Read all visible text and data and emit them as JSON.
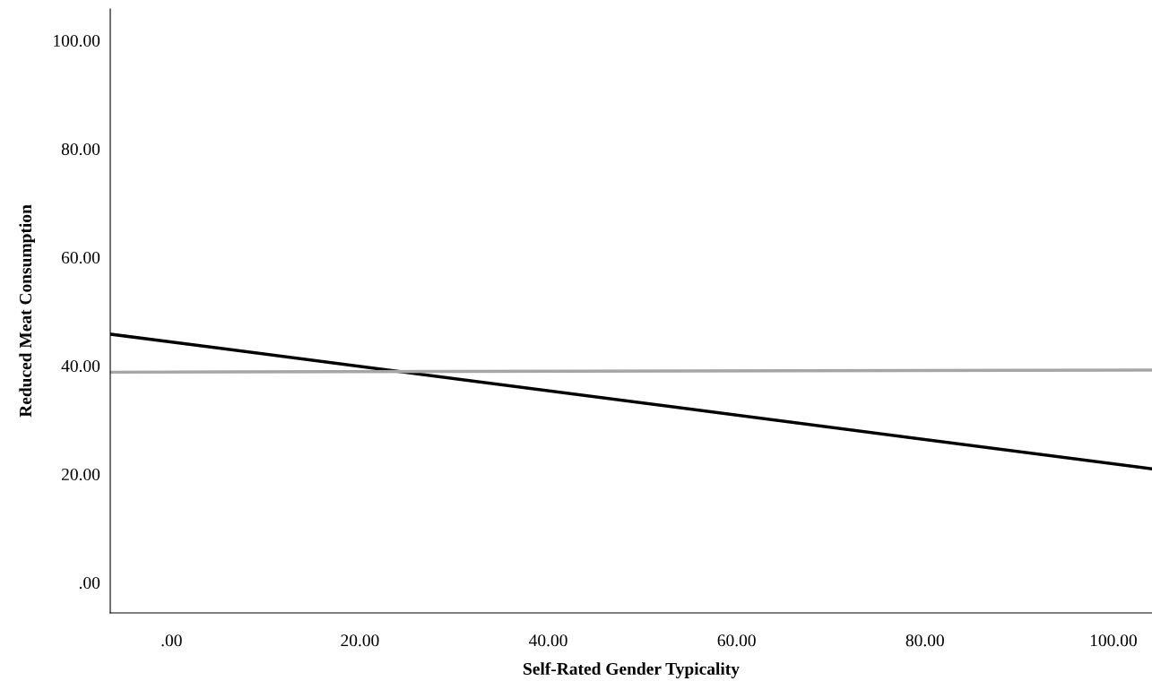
{
  "chart_data": {
    "type": "line",
    "xlabel": "Self-Rated Gender Typicality",
    "ylabel": "Reduced Meat Consumption",
    "xlim": [
      -6.5,
      104.1
    ],
    "ylim": [
      -5.6,
      105.8
    ],
    "xticks": [
      {
        "value": 0,
        "label": ".00"
      },
      {
        "value": 20,
        "label": "20.00"
      },
      {
        "value": 40,
        "label": "40.00"
      },
      {
        "value": 60,
        "label": "60.00"
      },
      {
        "value": 80,
        "label": "80.00"
      },
      {
        "value": 100,
        "label": "100.00"
      }
    ],
    "yticks": [
      {
        "value": 0,
        "label": ".00"
      },
      {
        "value": 20,
        "label": "20.00"
      },
      {
        "value": 40,
        "label": "40.00"
      },
      {
        "value": 60,
        "label": "60.00"
      },
      {
        "value": 80,
        "label": "80.00"
      },
      {
        "value": 100,
        "label": "100.00"
      }
    ],
    "grid": false,
    "marker": "none",
    "line_style": "solid",
    "x": [
      -6.4,
      104
    ],
    "series": [
      {
        "color": "#000000",
        "values": [
          45.8,
          21.0
        ]
      },
      {
        "color": "#a6a6a6",
        "values": [
          38.8,
          39.2
        ]
      }
    ]
  }
}
